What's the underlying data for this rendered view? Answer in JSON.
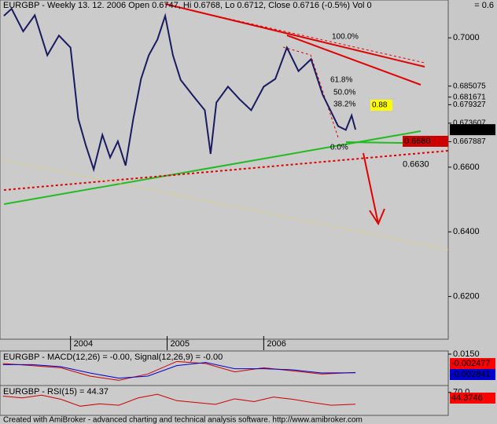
{
  "header": {
    "title": "EURGBP - Weekly 13. 12. 2006 Open 0.6747, Hi 0.6768, Lo 0.6712, Close 0.6716 (-0.5%) Vol 0",
    "corner": "= 0.6"
  },
  "footer": "Created with AmiBroker - advanced charting and technical analysis software. http://www.amibroker.com",
  "chart_data": [
    {
      "type": "line",
      "xlim": [
        2003.27,
        2007.91
      ],
      "ylim": [
        0.6068,
        0.7117
      ],
      "xticks": [
        2004,
        2005,
        2006
      ],
      "yticks": [
        {
          "value": 0.7,
          "label": "0.7000"
        },
        {
          "value": 0.66,
          "label": "0.6600"
        },
        {
          "value": 0.64,
          "label": "0.6400"
        },
        {
          "value": 0.62,
          "label": "0.6200"
        }
      ],
      "levels": [
        0.685075,
        0.681671,
        0.679327,
        0.673607,
        0.667887
      ],
      "badges": [
        {
          "value": 0.6716,
          "label": "0.6716",
          "color": "#000000"
        },
        {
          "value": 0.668,
          "label": "0.6680",
          "color": "#cc0000"
        },
        {
          "value": 0.663,
          "label": "0.6630",
          "color": "#0000cc"
        }
      ],
      "annotations": [
        "100.0%",
        "61.8%",
        "50.0%",
        "38.2%",
        "0.88",
        "0.0%"
      ],
      "series": [
        {
          "name": "EURGBP",
          "color": "#1a1a60",
          "x": [
            2003.31,
            2003.39,
            2003.51,
            2003.63,
            2003.76,
            2003.88,
            2004.0,
            2004.08,
            2004.16,
            2004.24,
            2004.33,
            2004.41,
            2004.49,
            2004.57,
            2004.65,
            2004.73,
            2004.81,
            2004.9,
            2004.98,
            2005.06,
            2005.14,
            2005.26,
            2005.39,
            2005.45,
            2005.51,
            2005.63,
            2005.75,
            2005.87,
            2006.0,
            2006.12,
            2006.24,
            2006.36,
            2006.49,
            2006.61,
            2006.69,
            2006.77,
            2006.85,
            2006.91,
            2006.95
          ],
          "values": [
            0.7068,
            0.709,
            0.702,
            0.707,
            0.6946,
            0.7007,
            0.697,
            0.675,
            0.6666,
            0.6593,
            0.67,
            0.663,
            0.668,
            0.6605,
            0.675,
            0.6873,
            0.6946,
            0.6995,
            0.7068,
            0.6946,
            0.687,
            0.6824,
            0.6776,
            0.6641,
            0.68,
            0.6849,
            0.681,
            0.6776,
            0.6849,
            0.6873,
            0.697,
            0.6897,
            0.6934,
            0.6824,
            0.6776,
            0.6727,
            0.6715,
            0.676,
            0.6716
          ]
        }
      ]
    },
    {
      "type": "line",
      "title": "EURGBP - MACD(12,26) = -0.00, Signal(12,26,9) = -0.00",
      "xlim": [
        2003.27,
        2007.91
      ],
      "ylim": [
        -0.015,
        0.018
      ],
      "yticks": [
        {
          "value": 0.015,
          "label": "0.0150"
        }
      ],
      "badges": [
        {
          "label": "-0.002477",
          "color": "#ff0000"
        },
        {
          "label": "-0.002841",
          "color": "#0000cc"
        }
      ],
      "series": [
        {
          "name": "MACD(12,26)",
          "color": "#cc0000",
          "x": [
            2003.3,
            2003.6,
            2003.9,
            2004.2,
            2004.5,
            2004.8,
            2005.1,
            2005.4,
            2005.7,
            2006.0,
            2006.3,
            2006.6,
            2006.95
          ],
          "values": [
            0.006,
            0.004,
            0.002,
            -0.006,
            -0.01,
            -0.004,
            0.008,
            0.006,
            -0.002,
            0.002,
            -0.001,
            -0.004,
            -0.0025
          ]
        },
        {
          "name": "Signal(12,26,9)",
          "color": "#0000cc",
          "x": [
            2003.3,
            2003.6,
            2003.9,
            2004.2,
            2004.5,
            2004.8,
            2005.1,
            2005.4,
            2005.7,
            2006.0,
            2006.3,
            2006.6,
            2006.95
          ],
          "values": [
            0.005,
            0.005,
            0.003,
            -0.003,
            -0.008,
            -0.006,
            0.004,
            0.007,
            0.001,
            0.001,
            0.0,
            -0.003,
            -0.0028
          ]
        }
      ]
    },
    {
      "type": "line",
      "title": "EURGBP - RSI(15) = 44.37",
      "xlim": [
        2003.27,
        2007.91
      ],
      "ylim": [
        20,
        85
      ],
      "yticks": [
        {
          "value": 70,
          "label": "70.0"
        }
      ],
      "badges": [
        {
          "label": "44.3746",
          "color": "#ff0000"
        }
      ],
      "series": [
        {
          "name": "RSI(15)",
          "color": "#cc0000",
          "x": [
            2003.3,
            2003.5,
            2003.7,
            2003.9,
            2004.1,
            2004.3,
            2004.5,
            2004.7,
            2004.9,
            2005.1,
            2005.3,
            2005.5,
            2005.7,
            2005.9,
            2006.1,
            2006.3,
            2006.5,
            2006.7,
            2006.95
          ],
          "values": [
            62,
            58,
            64,
            55,
            40,
            45,
            42,
            58,
            66,
            52,
            48,
            44,
            56,
            50,
            60,
            55,
            48,
            42,
            44.37
          ]
        }
      ]
    }
  ]
}
